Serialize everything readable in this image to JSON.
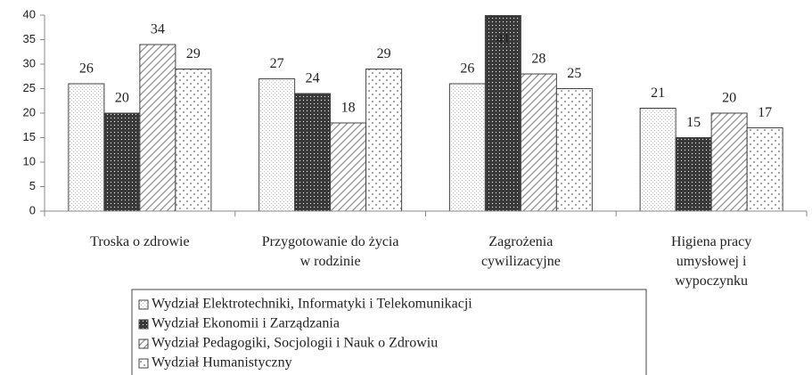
{
  "chart_data": {
    "type": "bar",
    "categories": [
      "Troska o zdrowie",
      "Przygotowanie do życia\nw rodzinie",
      "Zagrożenia\ncywilizacyjne",
      "Higiena pracy\numysłowej i\nwypoczynku"
    ],
    "series": [
      {
        "name": "Wydział Elektrotechniki, Informatyki i Telekomunikacji",
        "color": "#bdbdbd",
        "pattern": "dots-dense",
        "values": [
          26,
          27,
          26,
          21
        ]
      },
      {
        "name": "Wydział Ekonomii i Zarządzania",
        "color": "#3a3a3a",
        "pattern": "crosshatch",
        "values": [
          20,
          24,
          41,
          15
        ]
      },
      {
        "name": "Wydział Pedagogiki, Socjologii i Nauk o Zdrowiu",
        "color": "#8a8a8a",
        "pattern": "diagonal",
        "values": [
          34,
          18,
          28,
          20
        ]
      },
      {
        "name": "Wydział Humanistyczny",
        "color": "#6a6a6a",
        "pattern": "dots-sparse",
        "values": [
          29,
          29,
          25,
          17
        ]
      }
    ],
    "ylim": [
      0,
      40
    ],
    "yticks": [
      0,
      5,
      10,
      15,
      20,
      25,
      30,
      35,
      40
    ],
    "grid": false,
    "legend": "bottom"
  }
}
